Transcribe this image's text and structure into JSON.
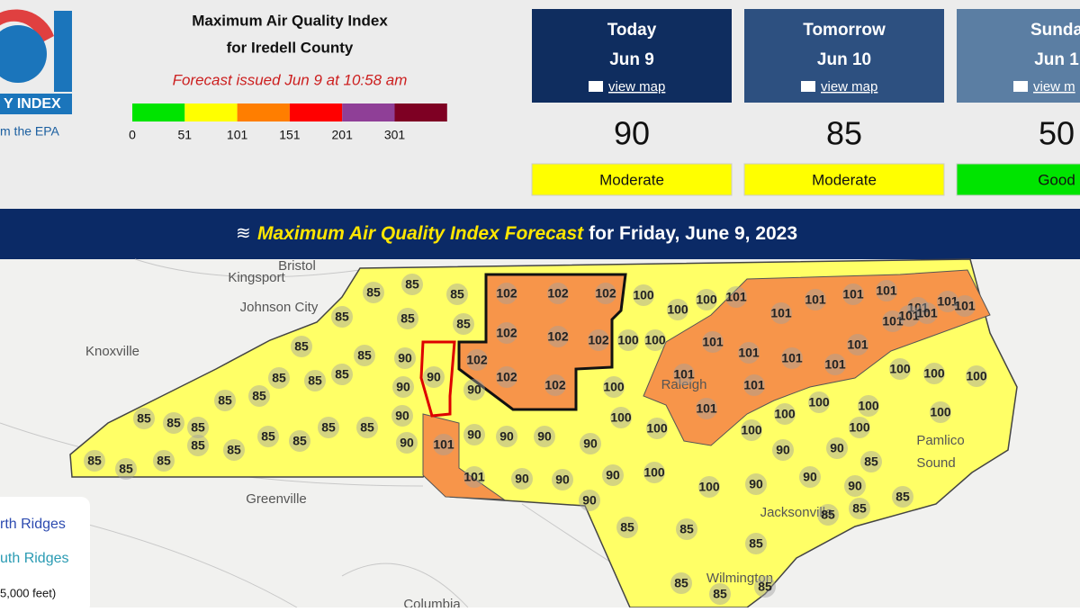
{
  "header": {
    "logo_text": "Y INDEX",
    "logo_sub": "m the EPA",
    "title": "Maximum Air Quality Index",
    "subtitle": "for Iredell County",
    "issued": "Forecast issued Jun 9 at 10:58 am"
  },
  "aqi_scale": {
    "breaks": [
      0,
      51,
      101,
      151,
      201,
      301
    ],
    "colors": [
      "#00e400",
      "#ffff00",
      "#ff7e00",
      "#ff0000",
      "#8f3f97",
      "#7e0023"
    ]
  },
  "forecast_cards": [
    {
      "day": "Today",
      "date": "Jun 9",
      "link": "view map",
      "aqi": 90,
      "category": "Moderate",
      "color": "#0f2d5f",
      "category_color": "#ffff00"
    },
    {
      "day": "Tomorrow",
      "date": "Jun 10",
      "link": "view map",
      "aqi": 85,
      "category": "Moderate",
      "color": "#2d5080",
      "category_color": "#ffff00"
    },
    {
      "day": "Sunda",
      "date": "Jun 1",
      "link": "view m",
      "aqi": 50,
      "category": "Good",
      "color": "#5b7ea3",
      "category_color": "#00e400"
    }
  ],
  "banner": {
    "highlight": "Maximum Air Quality Index Forecast",
    "rest": "for Friday, June 9, 2023"
  },
  "map": {
    "cities": [
      "Bristol",
      "Kingsport",
      "Johnson City",
      "Knoxville",
      "Greenville",
      "Raleigh",
      "Wilmington",
      "Columbia",
      "Pamlico",
      "Sound",
      "Jacksonville"
    ],
    "county_labels": [
      85,
      85,
      85,
      85,
      85,
      85,
      85,
      85,
      85,
      85,
      85,
      85,
      85,
      85,
      85,
      85,
      85,
      85,
      85,
      85,
      85,
      85,
      85,
      85,
      85,
      85,
      85,
      85,
      85,
      85,
      85,
      85,
      85,
      85,
      85,
      90,
      90,
      90,
      90,
      90,
      90,
      90,
      90,
      90,
      90,
      90,
      90,
      90,
      90,
      90,
      90,
      90,
      90,
      90,
      100,
      100,
      100,
      100,
      100,
      100,
      100,
      100,
      100,
      100,
      100,
      100,
      100,
      100,
      100,
      100,
      100,
      100,
      100,
      101,
      101,
      101,
      101,
      101,
      101,
      101,
      101,
      101,
      101,
      101,
      101,
      101,
      101,
      101,
      101,
      101,
      101,
      101,
      101,
      101,
      102,
      102,
      102,
      102,
      102,
      102,
      102,
      102,
      102
    ],
    "legend": [
      "rth Ridges",
      "uth Ridges",
      "5,000 feet)"
    ]
  }
}
